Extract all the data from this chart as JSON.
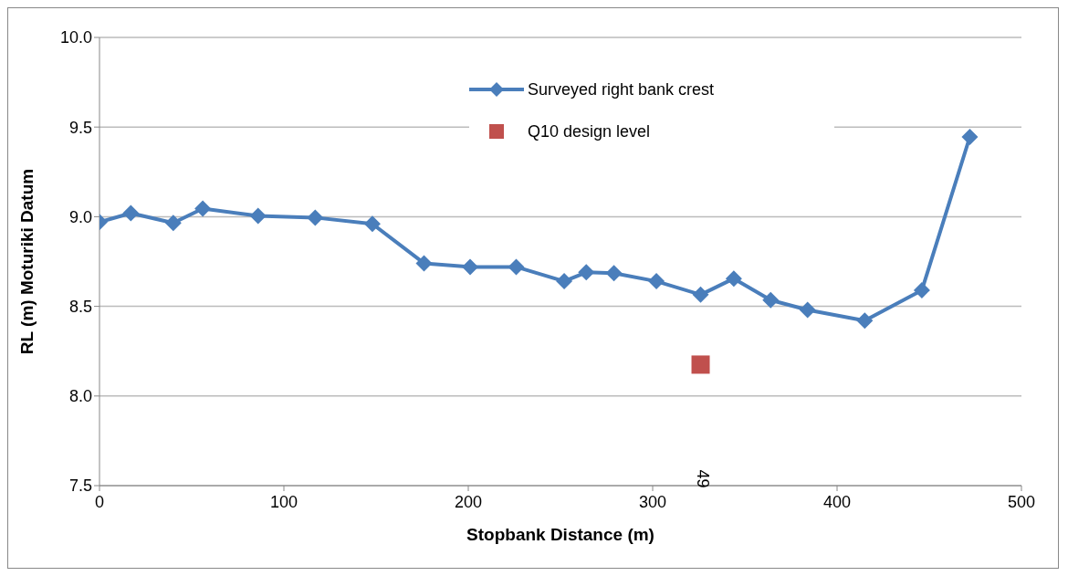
{
  "chart_data": {
    "type": "line",
    "xlabel": "Stopbank Distance (m)",
    "ylabel": "RL (m) Moturiki Datum",
    "xlim": [
      0,
      500
    ],
    "xticks": [
      0,
      100,
      200,
      300,
      400,
      500
    ],
    "ylim": [
      7.5,
      10
    ],
    "yticks": [
      {
        "value": 7.5,
        "label": "7.5"
      },
      {
        "value": 8,
        "label": "8.0"
      },
      {
        "value": 8.5,
        "label": "8.5"
      },
      {
        "value": 9,
        "label": "9.0"
      },
      {
        "value": 9.5,
        "label": "9.5"
      },
      {
        "value": 10,
        "label": "10.0"
      }
    ],
    "grid": "y",
    "legend": "top right",
    "line_style": "solid",
    "series": [
      {
        "name": "Surveyed right bank crest",
        "marker": "diamond",
        "color": "#4a7ebb",
        "x": [
          0,
          17,
          40,
          56,
          86,
          117,
          148,
          176,
          201,
          226,
          252,
          264,
          279,
          302,
          326,
          344,
          364,
          384,
          415,
          446,
          472
        ],
        "values": [
          8.97,
          9.02,
          8.965,
          9.045,
          9.005,
          8.995,
          8.96,
          8.74,
          8.72,
          8.72,
          8.64,
          8.69,
          8.685,
          8.64,
          8.565,
          8.655,
          8.535,
          8.48,
          8.42,
          8.59,
          9.445
        ]
      },
      {
        "name": "Q10 design level",
        "type": "scatter",
        "marker": "square",
        "color": "#c0504d",
        "x": [
          326
        ],
        "values": [
          8.175
        ]
      }
    ],
    "annotations": [
      "49"
    ]
  }
}
